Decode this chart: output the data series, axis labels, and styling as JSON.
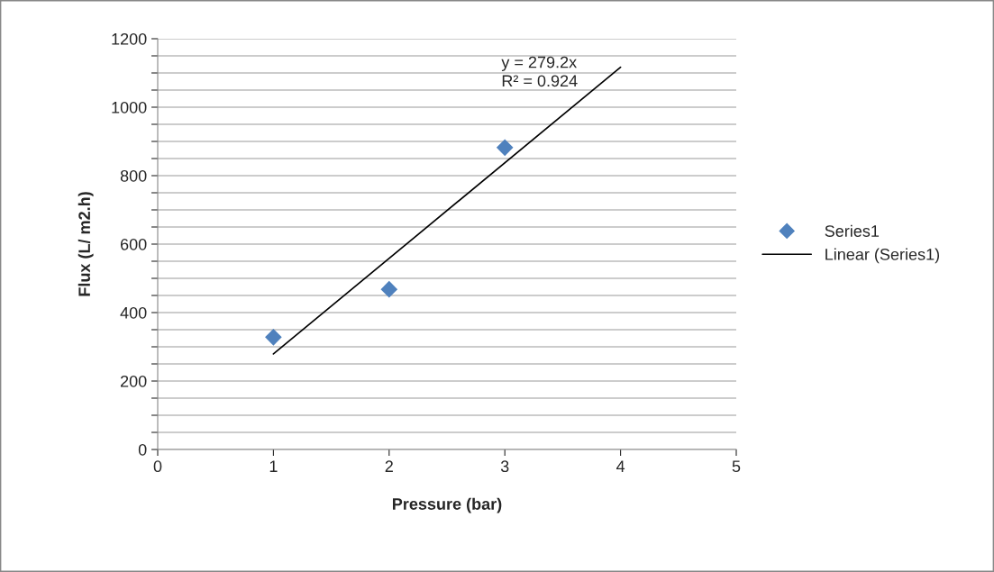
{
  "chart_data": {
    "type": "scatter",
    "xlabel": "Pressure (bar)",
    "ylabel": "Flux (L/ m2.h)",
    "x": [
      1,
      2,
      3
    ],
    "series": [
      {
        "name": "Series1",
        "color": "#4f81bd",
        "values": [
          328,
          468,
          882
        ],
        "marker": "diamond"
      },
      {
        "name": "Linear (Series1)",
        "type": "line",
        "color": "#000000",
        "x": [
          1,
          4
        ],
        "values": [
          279,
          1117
        ],
        "marker": "none"
      }
    ],
    "xlim": [
      0,
      5
    ],
    "xticks": [
      0,
      1,
      2,
      3,
      4,
      5
    ],
    "ylim": [
      0,
      1200
    ],
    "yticks": [
      0,
      {
        "value": 50,
        "label": null
      },
      {
        "value": 100,
        "label": null
      },
      {
        "value": 150,
        "label": null
      },
      200,
      {
        "value": 250,
        "label": null
      },
      {
        "value": 300,
        "label": null
      },
      {
        "value": 350,
        "label": null
      },
      400,
      {
        "value": 450,
        "label": null
      },
      {
        "value": 500,
        "label": null
      },
      {
        "value": 550,
        "label": null
      },
      600,
      {
        "value": 650,
        "label": null
      },
      {
        "value": 700,
        "label": null
      },
      {
        "value": 750,
        "label": null
      },
      800,
      {
        "value": 850,
        "label": null
      },
      {
        "value": 900,
        "label": null
      },
      {
        "value": 950,
        "label": null
      },
      1000,
      {
        "value": 1050,
        "label": null
      },
      {
        "value": 1100,
        "label": null
      },
      {
        "value": 1150,
        "label": null
      },
      1200
    ],
    "grid": "y",
    "legend": "right",
    "annotations": [
      "y = 279.2x\nR² = 0.924"
    ]
  }
}
